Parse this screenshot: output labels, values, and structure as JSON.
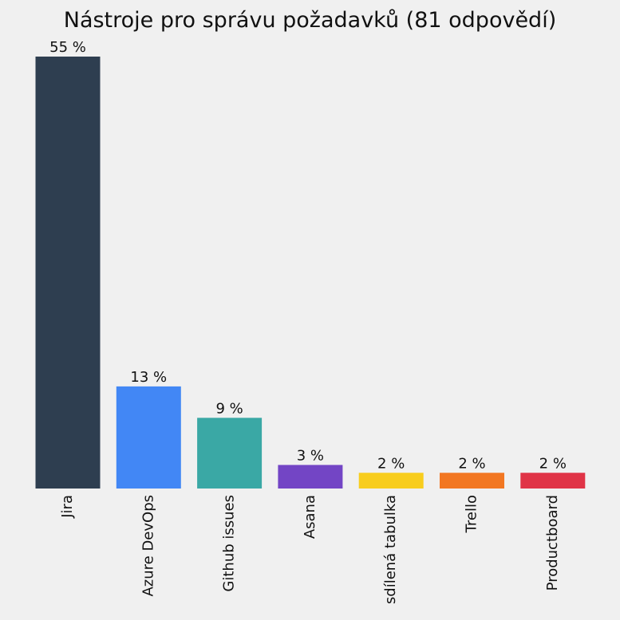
{
  "chart_data": {
    "type": "bar",
    "title": "Nástroje pro správu požadavků (81 odpovědí)",
    "categories": [
      "Jira",
      "Azure DevOps",
      "Github issues",
      "Asana",
      "sdílená tabulka",
      "Trello",
      "Productboard"
    ],
    "values": [
      55,
      13,
      9,
      3,
      2,
      2,
      2
    ],
    "value_labels": [
      "55 %",
      "13 %",
      "9 %",
      "3 %",
      "2 %",
      "2 %",
      "2 %"
    ],
    "colors": [
      "#2e3e50",
      "#4287f5",
      "#3aa8a5",
      "#7345c5",
      "#f8cd1e",
      "#f27722",
      "#e03447"
    ],
    "xlabel": "",
    "ylabel": "",
    "ylim": [
      0,
      55
    ],
    "grid": false,
    "legend": "none",
    "background": "#f0f0f0"
  }
}
